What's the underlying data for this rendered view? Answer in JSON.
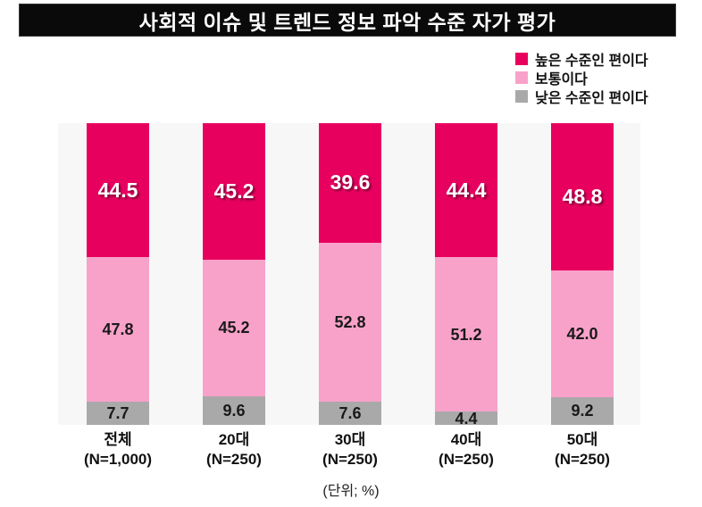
{
  "title": "사회적 이슈 및 트렌드 정보 파악 수준 자가 평가",
  "unit_note": "(단위; %)",
  "colors": {
    "banner_bg": "#0A0A0A",
    "banner_text": "#FFFFFF",
    "plot_bg": "#F7F7F7",
    "high": "#E8005F",
    "mid": "#F8A2CA",
    "low": "#A9A9A9",
    "value_label_light": "#FFFFFF",
    "value_label_dark": "#1A1A1A"
  },
  "chart_data": {
    "type": "bar",
    "stacked": true,
    "orientation": "vertical",
    "unit": "%",
    "title": "사회적 이슈 및 트렌드 정보 파악 수준 자가 평가",
    "categories": [
      "전체",
      "20대",
      "30대",
      "40대",
      "50대"
    ],
    "category_sublabels": [
      "(N=1,000)",
      "(N=250)",
      "(N=250)",
      "(N=250)",
      "(N=250)"
    ],
    "series": [
      {
        "name": "높은 수준인 편이다",
        "color_key": "high",
        "values": [
          44.5,
          45.2,
          39.6,
          44.4,
          48.8
        ]
      },
      {
        "name": "보통이다",
        "color_key": "mid",
        "values": [
          47.8,
          45.2,
          52.8,
          51.2,
          42.0
        ]
      },
      {
        "name": "낮은 수준인 편이다",
        "color_key": "low",
        "values": [
          7.7,
          9.6,
          7.6,
          4.4,
          9.2
        ]
      }
    ],
    "ylim": [
      0,
      100
    ],
    "grid": false,
    "legend_position": "top-right",
    "value_labels": true,
    "value_label_format": "one-decimal"
  }
}
